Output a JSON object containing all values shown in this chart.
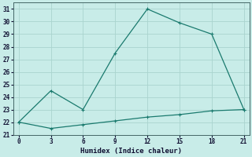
{
  "x": [
    0,
    3,
    6,
    9,
    12,
    15,
    18,
    21
  ],
  "y_curve": [
    22,
    24.5,
    23,
    27.5,
    31,
    29.9,
    29,
    23
  ],
  "y_flat": [
    22,
    21.5,
    21.8,
    22.1,
    22.4,
    22.6,
    22.9,
    23
  ],
  "line_color": "#1a7a6e",
  "bg_color": "#c8ece8",
  "grid_color": "#aad4ce",
  "xlabel": "Humidex (Indice chaleur)",
  "xlim": [
    -0.5,
    21.5
  ],
  "ylim": [
    21,
    31.5
  ],
  "xticks": [
    0,
    3,
    6,
    9,
    12,
    15,
    18,
    21
  ],
  "yticks": [
    21,
    22,
    23,
    24,
    25,
    26,
    27,
    28,
    29,
    30,
    31
  ],
  "markersize": 2.5,
  "linewidth": 0.9,
  "tick_fontsize": 5.5,
  "xlabel_fontsize": 6.5
}
